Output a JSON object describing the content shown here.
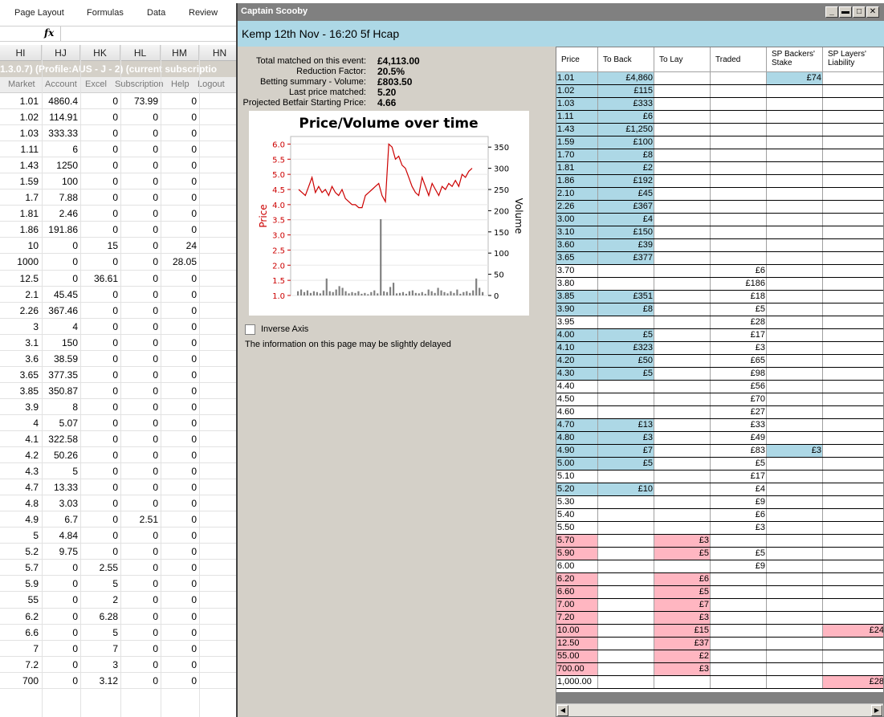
{
  "excel": {
    "ribbon_tabs": [
      "Page Layout",
      "Formulas",
      "Data",
      "Review"
    ],
    "fx_label": "fx",
    "columns": [
      "HI",
      "HJ",
      "HK",
      "HL",
      "HM",
      "HN"
    ],
    "status_bar": "1.3.0.7)   (Profile:AUS - J - 2)   (current subscriptio",
    "menu": [
      "Market",
      "Account",
      "Excel",
      "Subscription",
      "Help",
      "Logout"
    ],
    "rows": [
      [
        "1.01",
        "4860.4",
        "0",
        "73.99",
        "0"
      ],
      [
        "1.02",
        "114.91",
        "0",
        "0",
        "0"
      ],
      [
        "1.03",
        "333.33",
        "0",
        "0",
        "0"
      ],
      [
        "1.11",
        "6",
        "0",
        "0",
        "0"
      ],
      [
        "1.43",
        "1250",
        "0",
        "0",
        "0"
      ],
      [
        "1.59",
        "100",
        "0",
        "0",
        "0"
      ],
      [
        "1.7",
        "7.88",
        "0",
        "0",
        "0"
      ],
      [
        "1.81",
        "2.46",
        "0",
        "0",
        "0"
      ],
      [
        "1.86",
        "191.86",
        "0",
        "0",
        "0"
      ],
      [
        "10",
        "0",
        "15",
        "0",
        "24"
      ],
      [
        "1000",
        "0",
        "0",
        "0",
        "28.05"
      ],
      [
        "12.5",
        "0",
        "36.61",
        "0",
        "0"
      ],
      [
        "2.1",
        "45.45",
        "0",
        "0",
        "0"
      ],
      [
        "2.26",
        "367.46",
        "0",
        "0",
        "0"
      ],
      [
        "3",
        "4",
        "0",
        "0",
        "0"
      ],
      [
        "3.1",
        "150",
        "0",
        "0",
        "0"
      ],
      [
        "3.6",
        "38.59",
        "0",
        "0",
        "0"
      ],
      [
        "3.65",
        "377.35",
        "0",
        "0",
        "0"
      ],
      [
        "3.85",
        "350.87",
        "0",
        "0",
        "0"
      ],
      [
        "3.9",
        "8",
        "0",
        "0",
        "0"
      ],
      [
        "4",
        "5.07",
        "0",
        "0",
        "0"
      ],
      [
        "4.1",
        "322.58",
        "0",
        "0",
        "0"
      ],
      [
        "4.2",
        "50.26",
        "0",
        "0",
        "0"
      ],
      [
        "4.3",
        "5",
        "0",
        "0",
        "0"
      ],
      [
        "4.7",
        "13.33",
        "0",
        "0",
        "0"
      ],
      [
        "4.8",
        "3.03",
        "0",
        "0",
        "0"
      ],
      [
        "4.9",
        "6.7",
        "0",
        "2.51",
        "0"
      ],
      [
        "5",
        "4.84",
        "0",
        "0",
        "0"
      ],
      [
        "5.2",
        "9.75",
        "0",
        "0",
        "0"
      ],
      [
        "5.7",
        "0",
        "2.55",
        "0",
        "0"
      ],
      [
        "5.9",
        "0",
        "5",
        "0",
        "0"
      ],
      [
        "55",
        "0",
        "2",
        "0",
        "0"
      ],
      [
        "6.2",
        "0",
        "6.28",
        "0",
        "0"
      ],
      [
        "6.6",
        "0",
        "5",
        "0",
        "0"
      ],
      [
        "7",
        "0",
        "7",
        "0",
        "0"
      ],
      [
        "7.2",
        "0",
        "3",
        "0",
        "0"
      ],
      [
        "700",
        "0",
        "3.12",
        "0",
        "0"
      ]
    ]
  },
  "window": {
    "title": "Captain Scooby",
    "buttons": [
      "_",
      "▬",
      "□",
      "✕"
    ],
    "event": "Kemp 12th Nov - 16:20 5f Hcap",
    "stats": [
      {
        "label": "Total matched on this event:",
        "value": "£4,113.00"
      },
      {
        "label": "Reduction Factor:",
        "value": "20.5%"
      },
      {
        "label": "Betting summary - Volume:",
        "value": "£803.50"
      },
      {
        "label": "Last price matched:",
        "value": "5.20"
      },
      {
        "label": "Projected Betfair Starting Price:",
        "value": "4.66"
      }
    ],
    "inverse_axis_label": "Inverse Axis",
    "delay_note": "The information on this page may be slightly delayed"
  },
  "chart_data": {
    "type": "line",
    "title": "Price/Volume over time",
    "ylabel": "Price",
    "y2label": "Volume",
    "ylim": [
      1.0,
      6.25
    ],
    "y2lim": [
      0,
      375
    ],
    "yticks": [
      "1.0",
      "1.5",
      "2.0",
      "2.5",
      "3.0",
      "3.5",
      "4.0",
      "4.5",
      "5.0",
      "5.5",
      "6.0"
    ],
    "y2ticks": [
      "0",
      "50",
      "100",
      "150",
      "200",
      "250",
      "300",
      "350"
    ],
    "grid": true,
    "line_color": "#cc0000",
    "bar_color": "#808080",
    "series": [
      {
        "type": "line",
        "axis": "price",
        "values": [
          4.5,
          4.4,
          4.3,
          4.6,
          4.9,
          4.4,
          4.6,
          4.4,
          4.5,
          4.3,
          4.6,
          4.4,
          4.3,
          4.5,
          4.2,
          4.1,
          4.0,
          4.0,
          3.9,
          3.9,
          4.3,
          4.4,
          4.5,
          4.6,
          4.7,
          4.3,
          4.1,
          6.0,
          5.9,
          5.5,
          5.6,
          5.3,
          5.2,
          4.9,
          4.6,
          4.4,
          4.3,
          4.9,
          4.6,
          4.3,
          4.7,
          4.5,
          4.3,
          4.6,
          4.5,
          4.7,
          4.6,
          4.8,
          4.6,
          5.0,
          4.9,
          5.1,
          5.2
        ]
      },
      {
        "type": "bar",
        "axis": "volume",
        "values": [
          10,
          14,
          8,
          12,
          6,
          10,
          8,
          5,
          12,
          40,
          10,
          8,
          14,
          22,
          18,
          10,
          5,
          8,
          6,
          10,
          4,
          6,
          3,
          8,
          12,
          5,
          180,
          10,
          8,
          20,
          30,
          5,
          6,
          8,
          4,
          10,
          12,
          6,
          5,
          8,
          4,
          14,
          10,
          6,
          18,
          12,
          8,
          5,
          10,
          6,
          14,
          4,
          8,
          10,
          6,
          12,
          40,
          18,
          8
        ]
      }
    ]
  },
  "table": {
    "headers": [
      "Price",
      "To Back",
      "To Lay",
      "Traded",
      "SP Backers' Stake",
      "SP Layers' Liability"
    ],
    "rows": [
      {
        "p": "1.01",
        "b": "£4,860",
        "l": "",
        "t": "",
        "sb": "£74",
        "sl": "",
        "c": "b"
      },
      {
        "p": "1.02",
        "b": "£115",
        "l": "",
        "t": "",
        "sb": "",
        "sl": "",
        "c": "b"
      },
      {
        "p": "1.03",
        "b": "£333",
        "l": "",
        "t": "",
        "sb": "",
        "sl": "",
        "c": "b"
      },
      {
        "p": "1.11",
        "b": "£6",
        "l": "",
        "t": "",
        "sb": "",
        "sl": "",
        "c": "b"
      },
      {
        "p": "1.43",
        "b": "£1,250",
        "l": "",
        "t": "",
        "sb": "",
        "sl": "",
        "c": "b"
      },
      {
        "p": "1.59",
        "b": "£100",
        "l": "",
        "t": "",
        "sb": "",
        "sl": "",
        "c": "b"
      },
      {
        "p": "1.70",
        "b": "£8",
        "l": "",
        "t": "",
        "sb": "",
        "sl": "",
        "c": "b"
      },
      {
        "p": "1.81",
        "b": "£2",
        "l": "",
        "t": "",
        "sb": "",
        "sl": "",
        "c": "b"
      },
      {
        "p": "1.86",
        "b": "£192",
        "l": "",
        "t": "",
        "sb": "",
        "sl": "",
        "c": "b"
      },
      {
        "p": "2.10",
        "b": "£45",
        "l": "",
        "t": "",
        "sb": "",
        "sl": "",
        "c": "b"
      },
      {
        "p": "2.26",
        "b": "£367",
        "l": "",
        "t": "",
        "sb": "",
        "sl": "",
        "c": "b"
      },
      {
        "p": "3.00",
        "b": "£4",
        "l": "",
        "t": "",
        "sb": "",
        "sl": "",
        "c": "b"
      },
      {
        "p": "3.10",
        "b": "£150",
        "l": "",
        "t": "",
        "sb": "",
        "sl": "",
        "c": "b"
      },
      {
        "p": "3.60",
        "b": "£39",
        "l": "",
        "t": "",
        "sb": "",
        "sl": "",
        "c": "b"
      },
      {
        "p": "3.65",
        "b": "£377",
        "l": "",
        "t": "",
        "sb": "",
        "sl": "",
        "c": "b"
      },
      {
        "p": "3.70",
        "b": "",
        "l": "",
        "t": "£6",
        "sb": "",
        "sl": "",
        "c": ""
      },
      {
        "p": "3.80",
        "b": "",
        "l": "",
        "t": "£186",
        "sb": "",
        "sl": "",
        "c": ""
      },
      {
        "p": "3.85",
        "b": "£351",
        "l": "",
        "t": "£18",
        "sb": "",
        "sl": "",
        "c": "b"
      },
      {
        "p": "3.90",
        "b": "£8",
        "l": "",
        "t": "£5",
        "sb": "",
        "sl": "",
        "c": "b"
      },
      {
        "p": "3.95",
        "b": "",
        "l": "",
        "t": "£28",
        "sb": "",
        "sl": "",
        "c": ""
      },
      {
        "p": "4.00",
        "b": "£5",
        "l": "",
        "t": "£17",
        "sb": "",
        "sl": "",
        "c": "b"
      },
      {
        "p": "4.10",
        "b": "£323",
        "l": "",
        "t": "£3",
        "sb": "",
        "sl": "",
        "c": "b"
      },
      {
        "p": "4.20",
        "b": "£50",
        "l": "",
        "t": "£65",
        "sb": "",
        "sl": "",
        "c": "b"
      },
      {
        "p": "4.30",
        "b": "£5",
        "l": "",
        "t": "£98",
        "sb": "",
        "sl": "",
        "c": "b"
      },
      {
        "p": "4.40",
        "b": "",
        "l": "",
        "t": "£56",
        "sb": "",
        "sl": "",
        "c": ""
      },
      {
        "p": "4.50",
        "b": "",
        "l": "",
        "t": "£70",
        "sb": "",
        "sl": "",
        "c": ""
      },
      {
        "p": "4.60",
        "b": "",
        "l": "",
        "t": "£27",
        "sb": "",
        "sl": "",
        "c": ""
      },
      {
        "p": "4.70",
        "b": "£13",
        "l": "",
        "t": "£33",
        "sb": "",
        "sl": "",
        "c": "b"
      },
      {
        "p": "4.80",
        "b": "£3",
        "l": "",
        "t": "£49",
        "sb": "",
        "sl": "",
        "c": "b"
      },
      {
        "p": "4.90",
        "b": "£7",
        "l": "",
        "t": "£83",
        "sb": "£3",
        "sl": "",
        "c": "b"
      },
      {
        "p": "5.00",
        "b": "£5",
        "l": "",
        "t": "£5",
        "sb": "",
        "sl": "",
        "c": "b"
      },
      {
        "p": "5.10",
        "b": "",
        "l": "",
        "t": "£17",
        "sb": "",
        "sl": "",
        "c": ""
      },
      {
        "p": "5.20",
        "b": "£10",
        "l": "",
        "t": "£4",
        "sb": "",
        "sl": "",
        "c": "b"
      },
      {
        "p": "5.30",
        "b": "",
        "l": "",
        "t": "£9",
        "sb": "",
        "sl": "",
        "c": ""
      },
      {
        "p": "5.40",
        "b": "",
        "l": "",
        "t": "£6",
        "sb": "",
        "sl": "",
        "c": ""
      },
      {
        "p": "5.50",
        "b": "",
        "l": "",
        "t": "£3",
        "sb": "",
        "sl": "",
        "c": ""
      },
      {
        "p": "5.70",
        "b": "",
        "l": "£3",
        "t": "",
        "sb": "",
        "sl": "",
        "c": "l"
      },
      {
        "p": "5.90",
        "b": "",
        "l": "£5",
        "t": "£5",
        "sb": "",
        "sl": "",
        "c": "l"
      },
      {
        "p": "6.00",
        "b": "",
        "l": "",
        "t": "£9",
        "sb": "",
        "sl": "",
        "c": ""
      },
      {
        "p": "6.20",
        "b": "",
        "l": "£6",
        "t": "",
        "sb": "",
        "sl": "",
        "c": "l"
      },
      {
        "p": "6.60",
        "b": "",
        "l": "£5",
        "t": "",
        "sb": "",
        "sl": "",
        "c": "l"
      },
      {
        "p": "7.00",
        "b": "",
        "l": "£7",
        "t": "",
        "sb": "",
        "sl": "",
        "c": "l"
      },
      {
        "p": "7.20",
        "b": "",
        "l": "£3",
        "t": "",
        "sb": "",
        "sl": "",
        "c": "l"
      },
      {
        "p": "10.00",
        "b": "",
        "l": "£15",
        "t": "",
        "sb": "",
        "sl": "£24",
        "c": "l"
      },
      {
        "p": "12.50",
        "b": "",
        "l": "£37",
        "t": "",
        "sb": "",
        "sl": "",
        "c": "l"
      },
      {
        "p": "55.00",
        "b": "",
        "l": "£2",
        "t": "",
        "sb": "",
        "sl": "",
        "c": "l"
      },
      {
        "p": "700.00",
        "b": "",
        "l": "£3",
        "t": "",
        "sb": "",
        "sl": "",
        "c": "l"
      },
      {
        "p": "1,000.00",
        "b": "",
        "l": "",
        "t": "",
        "sb": "",
        "sl": "£28",
        "c": ""
      }
    ]
  }
}
